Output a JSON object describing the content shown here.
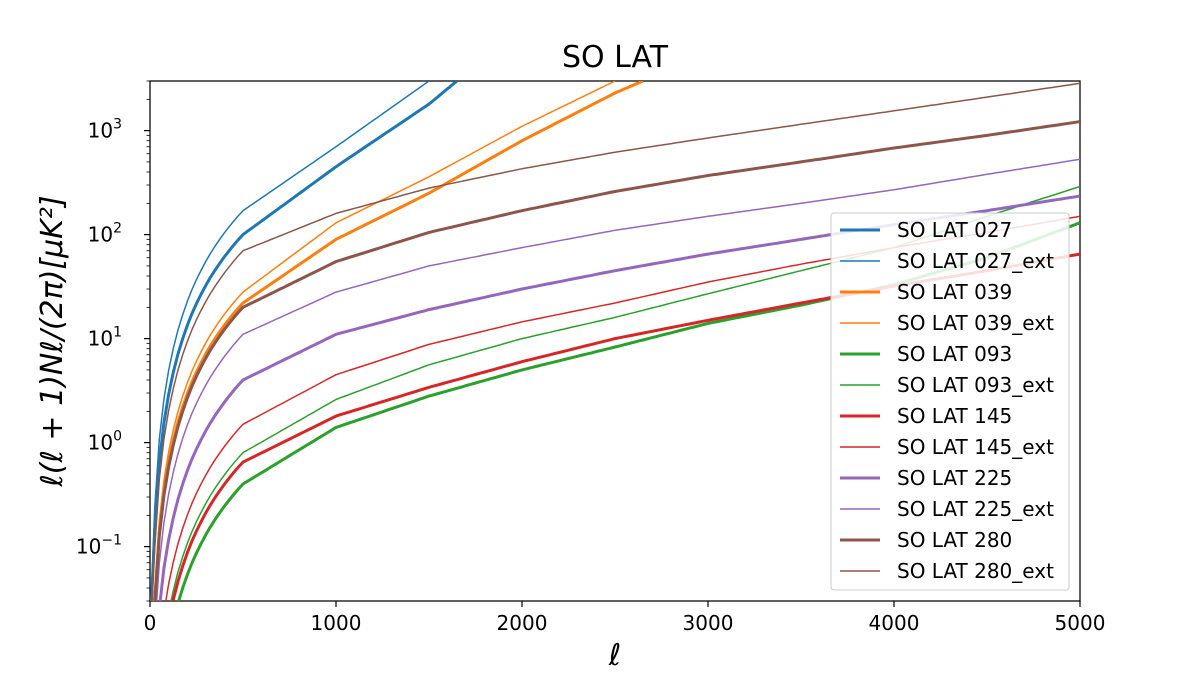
{
  "chart_data": {
    "type": "line",
    "title": "SO LAT",
    "xlabel": "ℓ",
    "ylabel": "ℓ(ℓ + 1)Nℓ/(2π)[μK²]",
    "xlim": [
      0,
      5000
    ],
    "ylim": [
      0.03,
      3000
    ],
    "yscale": "log",
    "x_ticks": [
      0,
      1000,
      2000,
      3000,
      4000,
      5000
    ],
    "x_tick_labels": [
      "0",
      "1000",
      "2000",
      "3000",
      "4000",
      "5000"
    ],
    "y_ticks": [
      {
        "value": 0.1,
        "base": "10",
        "exp": "−1"
      },
      {
        "value": 1,
        "base": "10",
        "exp": "0"
      },
      {
        "value": 10,
        "base": "10",
        "exp": "1"
      },
      {
        "value": 100,
        "base": "10",
        "exp": "2"
      },
      {
        "value": 1000,
        "base": "10",
        "exp": "3"
      }
    ],
    "legend_position": "right",
    "series": [
      {
        "name": "SO LAT 027",
        "color": "#1f77b4",
        "style": "thick",
        "x": [
          0,
          500,
          1000,
          1500,
          1650
        ],
        "y": [
          0,
          100,
          450,
          1800,
          3000
        ]
      },
      {
        "name": "SO LAT 027_ext",
        "color": "#1f77b4",
        "style": "thin",
        "x": [
          0,
          500,
          1000,
          1500
        ],
        "y": [
          0,
          170,
          700,
          3000
        ]
      },
      {
        "name": "SO LAT 039",
        "color": "#ff7f0e",
        "style": "thick",
        "x": [
          0,
          500,
          1000,
          1500,
          2000,
          2500,
          2650
        ],
        "y": [
          0,
          22,
          90,
          250,
          800,
          2300,
          3000
        ]
      },
      {
        "name": "SO LAT 039_ext",
        "color": "#ff7f0e",
        "style": "thin",
        "x": [
          0,
          500,
          1000,
          1500,
          2000,
          2500
        ],
        "y": [
          0,
          28,
          130,
          360,
          1100,
          3000
        ]
      },
      {
        "name": "SO LAT 093",
        "color": "#2ca02c",
        "style": "thick",
        "x": [
          0,
          500,
          1000,
          1500,
          2000,
          2500,
          3000,
          3500,
          4000,
          4500,
          5000
        ],
        "y": [
          0,
          0.4,
          1.4,
          2.8,
          5,
          8.3,
          14,
          21,
          33,
          60,
          130
        ]
      },
      {
        "name": "SO LAT 093_ext",
        "color": "#2ca02c",
        "style": "thin",
        "x": [
          0,
          500,
          1000,
          1500,
          2000,
          2500,
          3000,
          3500,
          4000,
          4500,
          5000
        ],
        "y": [
          0,
          0.8,
          2.6,
          5.6,
          10,
          16,
          27,
          45,
          75,
          150,
          290
        ]
      },
      {
        "name": "SO LAT 145",
        "color": "#d62728",
        "style": "thick",
        "x": [
          0,
          500,
          1000,
          1500,
          2000,
          2500,
          3000,
          3500,
          4000,
          4500,
          5000
        ],
        "y": [
          0,
          0.65,
          1.8,
          3.4,
          6,
          10,
          15,
          22,
          32,
          45,
          65
        ]
      },
      {
        "name": "SO LAT 145_ext",
        "color": "#d62728",
        "style": "thin",
        "x": [
          0,
          500,
          1000,
          1500,
          2000,
          2500,
          3000,
          3500,
          4000,
          4500,
          5000
        ],
        "y": [
          0,
          1.5,
          4.5,
          8.8,
          14.5,
          22,
          35,
          52,
          75,
          105,
          150
        ]
      },
      {
        "name": "SO LAT 225",
        "color": "#9467bd",
        "style": "thick",
        "x": [
          0,
          500,
          1000,
          1500,
          2000,
          2500,
          3000,
          3500,
          4000,
          4500,
          5000
        ],
        "y": [
          0,
          4,
          11,
          19,
          30,
          45,
          65,
          90,
          125,
          170,
          235
        ]
      },
      {
        "name": "SO LAT 225_ext",
        "color": "#9467bd",
        "style": "thin",
        "x": [
          0,
          500,
          1000,
          1500,
          2000,
          2500,
          3000,
          3500,
          4000,
          4500,
          5000
        ],
        "y": [
          0,
          11,
          28,
          50,
          75,
          110,
          150,
          200,
          270,
          380,
          530
        ]
      },
      {
        "name": "SO LAT 280",
        "color": "#8c564b",
        "style": "thick",
        "x": [
          0,
          500,
          1000,
          1500,
          2000,
          2500,
          3000,
          3500,
          4000,
          4500,
          5000
        ],
        "y": [
          0,
          20,
          55,
          105,
          170,
          260,
          370,
          500,
          680,
          900,
          1220
        ]
      },
      {
        "name": "SO LAT 280_ext",
        "color": "#8c564b",
        "style": "thin",
        "x": [
          0,
          500,
          1000,
          1500,
          2000,
          2500,
          3000,
          3500,
          4000,
          4500,
          5000
        ],
        "y": [
          0,
          70,
          160,
          280,
          430,
          620,
          850,
          1150,
          1550,
          2100,
          2850
        ]
      }
    ]
  }
}
